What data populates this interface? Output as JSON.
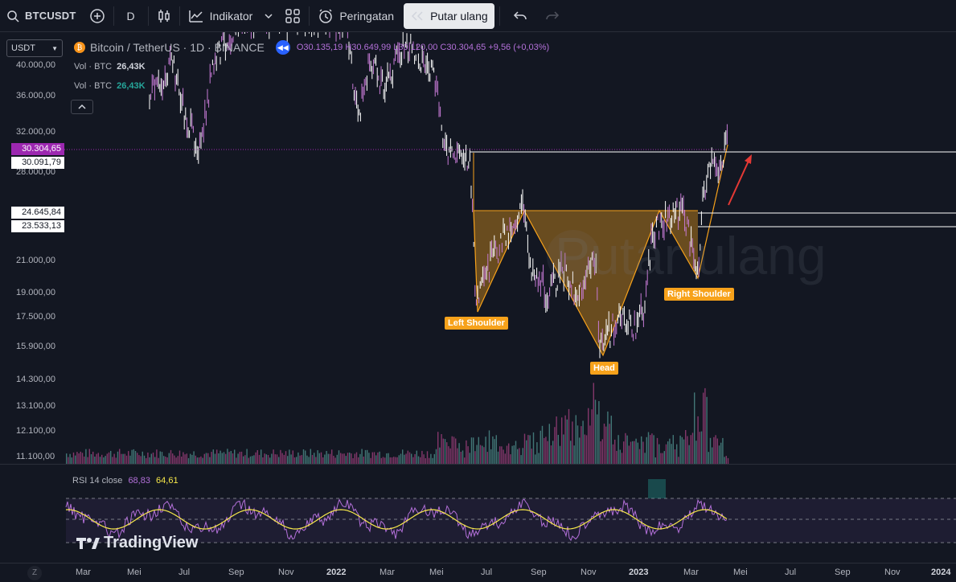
{
  "toolbar": {
    "symbol": "BTCUSDT",
    "interval": "D",
    "indicators_label": "Indikator",
    "alerts_label": "Peringatan",
    "replay_label": "Putar ulang"
  },
  "legend": {
    "title": "Bitcoin / TetherUS · 1D · BINANCE",
    "ohlc": "O30.135,19 H30.649,99 L30.120,00 C30.304,65 +9,56 (+0,03%)",
    "vol1_label": "Vol · BTC",
    "vol1_value": "26,43K",
    "vol2_label": "Vol · BTC",
    "vol2_value": "26,43K"
  },
  "currency_select": "USDT",
  "price_axis": [
    "40.000,00",
    "36.000,00",
    "32.000,00",
    "28.000,00",
    "21.000,00",
    "19.000,00",
    "17.500,00",
    "15.900,00",
    "14.300,00",
    "13.100,00",
    "12.100,00",
    "11.100,00"
  ],
  "price_tags": {
    "last_price": "30.304,65",
    "level_1": "30.091,79",
    "level_2": "24.645,84",
    "level_3": "23.533,13"
  },
  "watermark": "Putar ulang",
  "annotations": {
    "left_shoulder": "Left Shoulder",
    "head": "Head",
    "right_shoulder": "Right Shoulder"
  },
  "rsi": {
    "label": "RSI 14 close",
    "value_rsi": "68,83",
    "value_ma": "64,61"
  },
  "brand": "TradingView",
  "time_axis": [
    "Mar",
    "Mei",
    "Jul",
    "Sep",
    "Nov",
    "2022",
    "Mar",
    "Mei",
    "Jul",
    "Sep",
    "Nov",
    "2023",
    "Mar",
    "Mei",
    "Jul",
    "Sep",
    "Nov",
    "2024"
  ],
  "zoom_button": "Z",
  "colors": {
    "background": "#131722",
    "candles": "#c77bd6",
    "pattern_fill": "#f7a21b",
    "rsi_line": "#b370d9",
    "rsi_ma": "#f7e84a",
    "arrow": "#e53935"
  }
}
